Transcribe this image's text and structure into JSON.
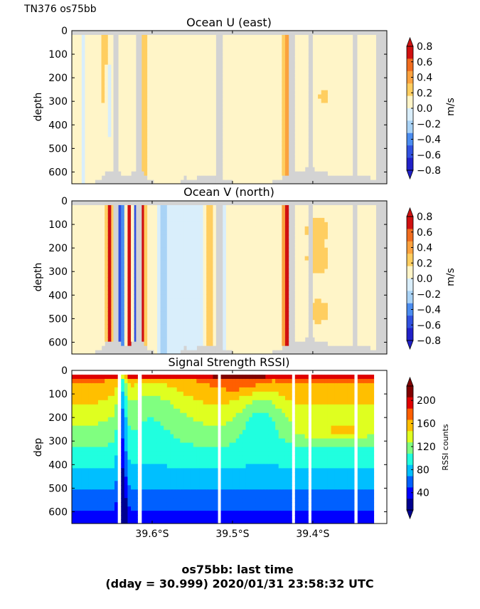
{
  "header": {
    "cruise_label": "TN376 os75bb"
  },
  "footer": {
    "line1": "os75bb: last time",
    "line2": "(dday = 30.999) 2020/01/31 23:58:32 UTC"
  },
  "colors": {
    "nodata": "#d3d3d3",
    "diverging": [
      "#2020c8",
      "#3050e0",
      "#4a8cf0",
      "#a9d3f6",
      "#d9eefb",
      "#fff5c8",
      "#ffce60",
      "#fba23e",
      "#f06c1e",
      "#d01010"
    ],
    "rssi": [
      "#00008f",
      "#0000ff",
      "#0060ff",
      "#00bfff",
      "#20ffdf",
      "#80ff80",
      "#dfff20",
      "#ffbf00",
      "#ff5f00",
      "#df0000",
      "#800000"
    ]
  },
  "chart_data": [
    {
      "type": "heatmap",
      "title": "Ocean U (east)",
      "ylabel": "depth",
      "ylim": [
        650,
        0
      ],
      "yticks": [
        0,
        100,
        200,
        300,
        400,
        500,
        600
      ],
      "x_tick_labels": [
        "39.6°S",
        "39.5°S",
        "39.4°S"
      ],
      "x_tick_labels_visible": false,
      "colorbar": {
        "label": "m/s",
        "ticks": [
          "0.8",
          "0.6",
          "0.4",
          "0.2",
          "0.0",
          "−0.2",
          "−0.4",
          "−0.6",
          "−0.8"
        ],
        "range": [
          -0.8,
          0.8
        ]
      },
      "gaps": [
        [
          0.132,
          0.148
        ],
        [
          0.204,
          0.222
        ],
        [
          0.458,
          0.475
        ],
        [
          0.692,
          0.705
        ],
        [
          0.752,
          0.765
        ],
        [
          0.892,
          0.905
        ],
        [
          0.966,
          1.0
        ]
      ]
    },
    {
      "type": "heatmap",
      "title": "Ocean V (north)",
      "ylabel": "depth",
      "ylim": [
        650,
        0
      ],
      "yticks": [
        0,
        100,
        200,
        300,
        400,
        500,
        600
      ],
      "x_tick_labels": [
        "39.6°S",
        "39.5°S",
        "39.4°S"
      ],
      "x_tick_labels_visible": false,
      "colorbar": {
        "label": "m/s",
        "ticks": [
          "0.8",
          "0.6",
          "0.4",
          "0.2",
          "0.0",
          "−0.2",
          "−0.4",
          "−0.6",
          "−0.8"
        ],
        "range": [
          -0.8,
          0.8
        ]
      },
      "gaps": [
        [
          0.132,
          0.148
        ],
        [
          0.204,
          0.222
        ],
        [
          0.458,
          0.475
        ],
        [
          0.692,
          0.705
        ],
        [
          0.752,
          0.765
        ],
        [
          0.892,
          0.905
        ],
        [
          0.966,
          1.0
        ]
      ]
    },
    {
      "type": "heatmap",
      "title": "Signal Strength RSSI)",
      "ylabel": "dep",
      "ylim": [
        650,
        0
      ],
      "yticks": [
        0,
        100,
        200,
        300,
        400,
        500,
        600
      ],
      "x_tick_labels": [
        "39.6°S",
        "39.5°S",
        "39.4°S"
      ],
      "colorbar": {
        "label": "RSSI counts",
        "ticks": [
          "200",
          "160",
          "120",
          "80",
          "40"
        ],
        "range": [
          10,
          225
        ]
      },
      "gaps": [
        [
          0.146,
          0.154
        ],
        [
          0.213,
          0.222
        ],
        [
          0.464,
          0.473
        ],
        [
          0.701,
          0.706
        ],
        [
          0.754,
          0.76
        ],
        [
          0.901,
          0.907
        ],
        [
          0.96,
          1.0
        ]
      ]
    }
  ]
}
